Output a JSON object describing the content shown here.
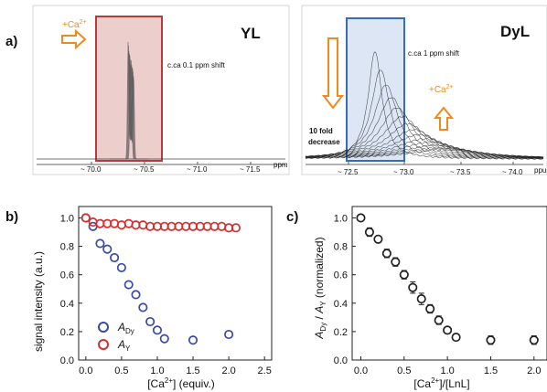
{
  "panels": {
    "a": {
      "letter": "a)",
      "yl": {
        "label": "YL",
        "annotation_add": "+Ca",
        "annotation_add_sup": "2+",
        "shift_note": "c.ca 0.1 ppm shift",
        "x_unit": "ppm",
        "ticks": [
          "~ 70.0",
          "~ 70.5",
          "~ 71.0",
          "~ 71.5"
        ],
        "box_color": "#b83a3a",
        "box_fill": "#eccfcc"
      },
      "dyl": {
        "label": "DyL",
        "shift_note": "c.ca 1 ppm shift",
        "annotation_add": "+Ca",
        "annotation_add_sup": "2+",
        "decrease_note_1": "10 fold",
        "decrease_note_2": "decrease",
        "x_unit": "ppu",
        "ticks": [
          "~ 72.5",
          "~ 73.0",
          "~ 73.5",
          "~ 74.0"
        ],
        "box_color": "#3a6bb8",
        "box_fill": "#d6e2f2"
      },
      "arrow_color": "#f08a1c"
    },
    "b": {
      "letter": "b)",
      "ylabel": "signal intensity (a.u.)",
      "xlabel_pre": "[Ca",
      "xlabel_sup": "2+",
      "xlabel_post": "] (equiv.)",
      "legend": [
        {
          "sym": "A",
          "sub": "Dy",
          "color": "#3a4aa8"
        },
        {
          "sym": "A",
          "sub": "Y",
          "color": "#d62e2e"
        }
      ]
    },
    "c": {
      "letter": "c)",
      "ylabel_parts": [
        "A",
        "Dy",
        " / ",
        "A",
        "Y",
        " (normalized)"
      ],
      "xlabel_pre": "[Ca",
      "xlabel_sup": "2+",
      "xlabel_post": "]/[LnL]"
    }
  },
  "chart_data": [
    {
      "type": "scatter",
      "panel": "b",
      "xlim": [
        -0.1,
        2.6
      ],
      "ylim": [
        0.0,
        1.08
      ],
      "xticks": [
        0.0,
        0.5,
        1.0,
        1.5,
        2.0,
        2.5
      ],
      "yticks": [
        0.0,
        0.2,
        0.4,
        0.6,
        0.8,
        1.0
      ],
      "xtick_labels": [
        "0.0",
        "0.5",
        "1.0",
        "1.5",
        "2.0",
        "2.5"
      ],
      "ytick_labels": [
        "0.0",
        "0.2",
        "0.4",
        "0.6",
        "0.8",
        "1.0"
      ],
      "series": [
        {
          "name": "A_Dy",
          "color": "#3a4aa8",
          "x": [
            0.0,
            0.1,
            0.2,
            0.3,
            0.4,
            0.5,
            0.6,
            0.7,
            0.8,
            0.9,
            1.0,
            1.1,
            1.5,
            2.0
          ],
          "y": [
            1.0,
            0.94,
            0.82,
            0.78,
            0.72,
            0.65,
            0.53,
            0.46,
            0.37,
            0.27,
            0.21,
            0.15,
            0.14,
            0.18
          ]
        },
        {
          "name": "A_Y",
          "color": "#d62e2e",
          "x": [
            0.0,
            0.1,
            0.2,
            0.3,
            0.4,
            0.5,
            0.6,
            0.7,
            0.8,
            0.9,
            1.0,
            1.1,
            1.2,
            1.3,
            1.4,
            1.5,
            1.6,
            1.7,
            1.8,
            1.9,
            2.0,
            2.1
          ],
          "y": [
            1.0,
            0.97,
            0.96,
            0.96,
            0.96,
            0.95,
            0.96,
            0.95,
            0.95,
            0.94,
            0.94,
            0.94,
            0.94,
            0.94,
            0.94,
            0.94,
            0.94,
            0.94,
            0.94,
            0.94,
            0.93,
            0.93
          ]
        }
      ]
    },
    {
      "type": "scatter",
      "panel": "c",
      "xlim": [
        -0.1,
        2.15
      ],
      "ylim": [
        0.0,
        1.08
      ],
      "xticks": [
        0.0,
        0.5,
        1.0,
        1.5,
        2.0
      ],
      "yticks": [
        0.0,
        0.2,
        0.4,
        0.6,
        0.8,
        1.0
      ],
      "xtick_labels": [
        "0.0",
        "0.5",
        "1.0",
        "1.5",
        "2.0"
      ],
      "ytick_labels": [
        "0.0",
        "0.2",
        "0.4",
        "0.6",
        "0.8",
        "1.0"
      ],
      "series": [
        {
          "color": "#222222",
          "x": [
            0.0,
            0.1,
            0.2,
            0.3,
            0.4,
            0.5,
            0.6,
            0.7,
            0.8,
            0.9,
            1.0,
            1.1,
            1.5,
            2.0
          ],
          "y": [
            1.0,
            0.9,
            0.85,
            0.75,
            0.69,
            0.6,
            0.51,
            0.43,
            0.36,
            0.28,
            0.21,
            0.16,
            0.14,
            0.14
          ],
          "err": [
            0.02,
            0.03,
            0.02,
            0.03,
            0.03,
            0.03,
            0.04,
            0.04,
            0.03,
            0.03,
            0.02,
            0.02,
            0.03,
            0.03
          ]
        }
      ]
    }
  ]
}
